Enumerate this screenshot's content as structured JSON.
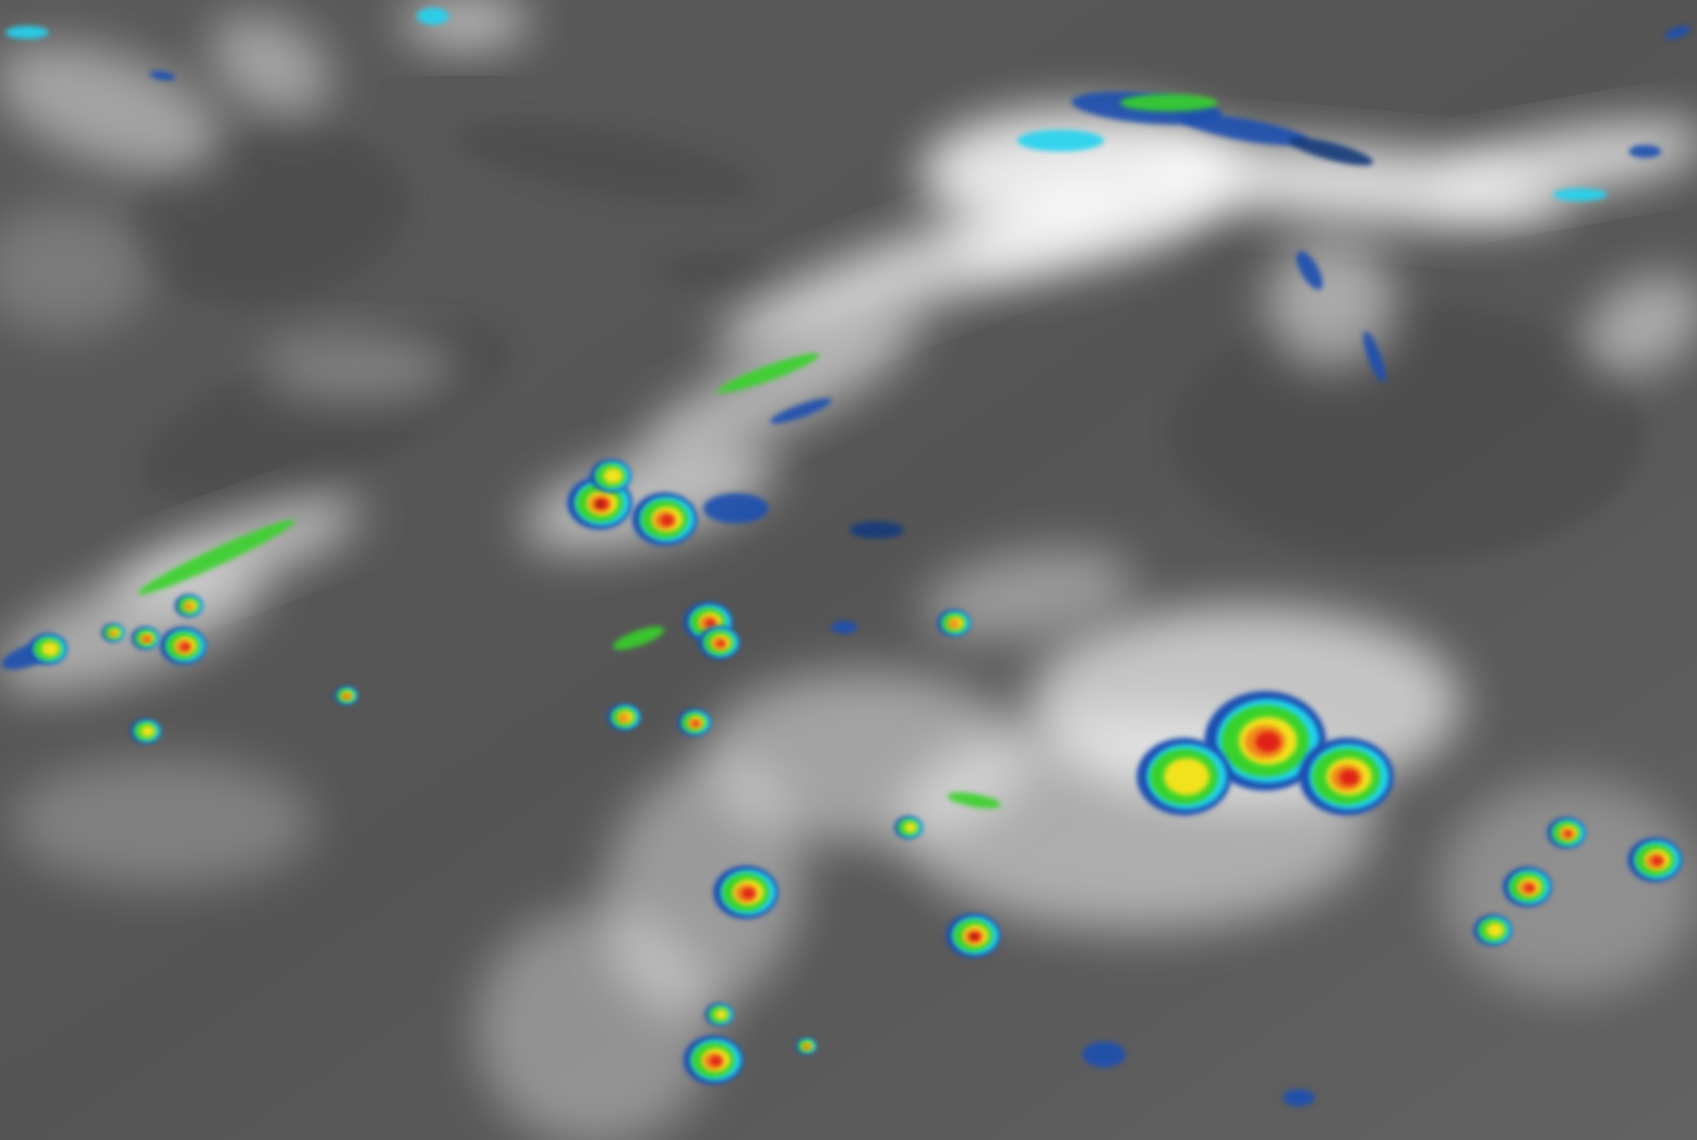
{
  "image": {
    "kind": "infrared satellite imagery",
    "colors": {
      "background_dark": "#4a4a4a",
      "background_mid": "#6a6a6a",
      "cloud_light": "#e6e6e6",
      "cloud_white": "#ffffff",
      "cold_cyan": "#22d3f0",
      "cold_blue": "#1a4fb0",
      "cold_navy": "#123a7a",
      "green": "#37d22a",
      "yellow": "#f2e21a",
      "orange": "#f08a1a",
      "red": "#e02418",
      "darkred": "#7a1010"
    }
  }
}
